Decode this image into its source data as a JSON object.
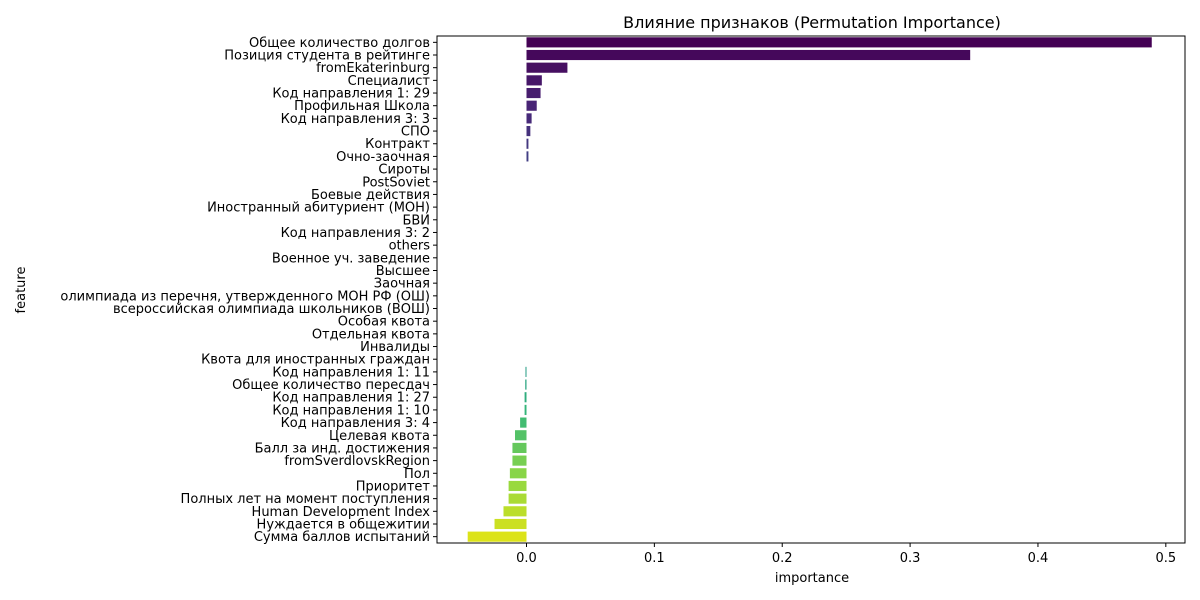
{
  "chart_data": {
    "type": "bar",
    "orientation": "horizontal",
    "title": "Влияние признаков (Permutation Importance)",
    "xlabel": "importance",
    "ylabel": "feature",
    "xlim": [
      -0.07,
      0.515
    ],
    "xticks": [
      0.0,
      0.1,
      0.2,
      0.3,
      0.4,
      0.5
    ],
    "xtick_labels": [
      "0.0",
      "0.1",
      "0.2",
      "0.3",
      "0.4",
      "0.5"
    ],
    "grid": false,
    "palette": "viridis",
    "categories": [
      "Общее количество долгов",
      "Позиция студента в рейтинге",
      "fromEkaterinburg",
      "Специалист",
      "Код направления 1: 29",
      "Профильная Школа",
      "Код направления 3: 3",
      "СПО",
      "Контракт",
      "Очно-заочная",
      "Сироты",
      "PostSoviet",
      "Боевые действия",
      "Иностранный абитуриент (МОН)",
      "БВИ",
      "Код направления 3: 2",
      "others",
      "Военное уч. заведение",
      "Высшее",
      "Заочная",
      "олимпиада из перечня, утвержденного МОН РФ (ОШ)",
      "всероссийская олимпиада школьников (ВОШ)",
      "Особая квота",
      "Отдельная квота",
      "Инвалиды",
      "Квота для иностранных граждан",
      "Код направления 1: 11",
      "Общее количество пересдач",
      "Код направления 1: 27",
      "Код направления 1: 10",
      "Код направления 3: 4",
      "Целевая квота",
      "Балл за инд. достижения",
      "fromSverdlovskRegion",
      "Пол",
      "Приоритет",
      "Полных лет на момент поступления",
      "Human Development Index",
      "Нуждается в общежитии",
      "Сумма баллов испытаний"
    ],
    "values": [
      0.489,
      0.347,
      0.032,
      0.012,
      0.011,
      0.008,
      0.004,
      0.003,
      0.0015,
      0.0015,
      0.0,
      0.0,
      0.0,
      0.0,
      0.0,
      0.0,
      0.0,
      0.0,
      0.0,
      0.0,
      0.0,
      0.0,
      0.0,
      0.0,
      0.0,
      0.0,
      -0.0008,
      -0.001,
      -0.0015,
      -0.0015,
      -0.005,
      -0.009,
      -0.011,
      -0.011,
      -0.013,
      -0.014,
      -0.014,
      -0.018,
      -0.025,
      -0.046
    ]
  }
}
